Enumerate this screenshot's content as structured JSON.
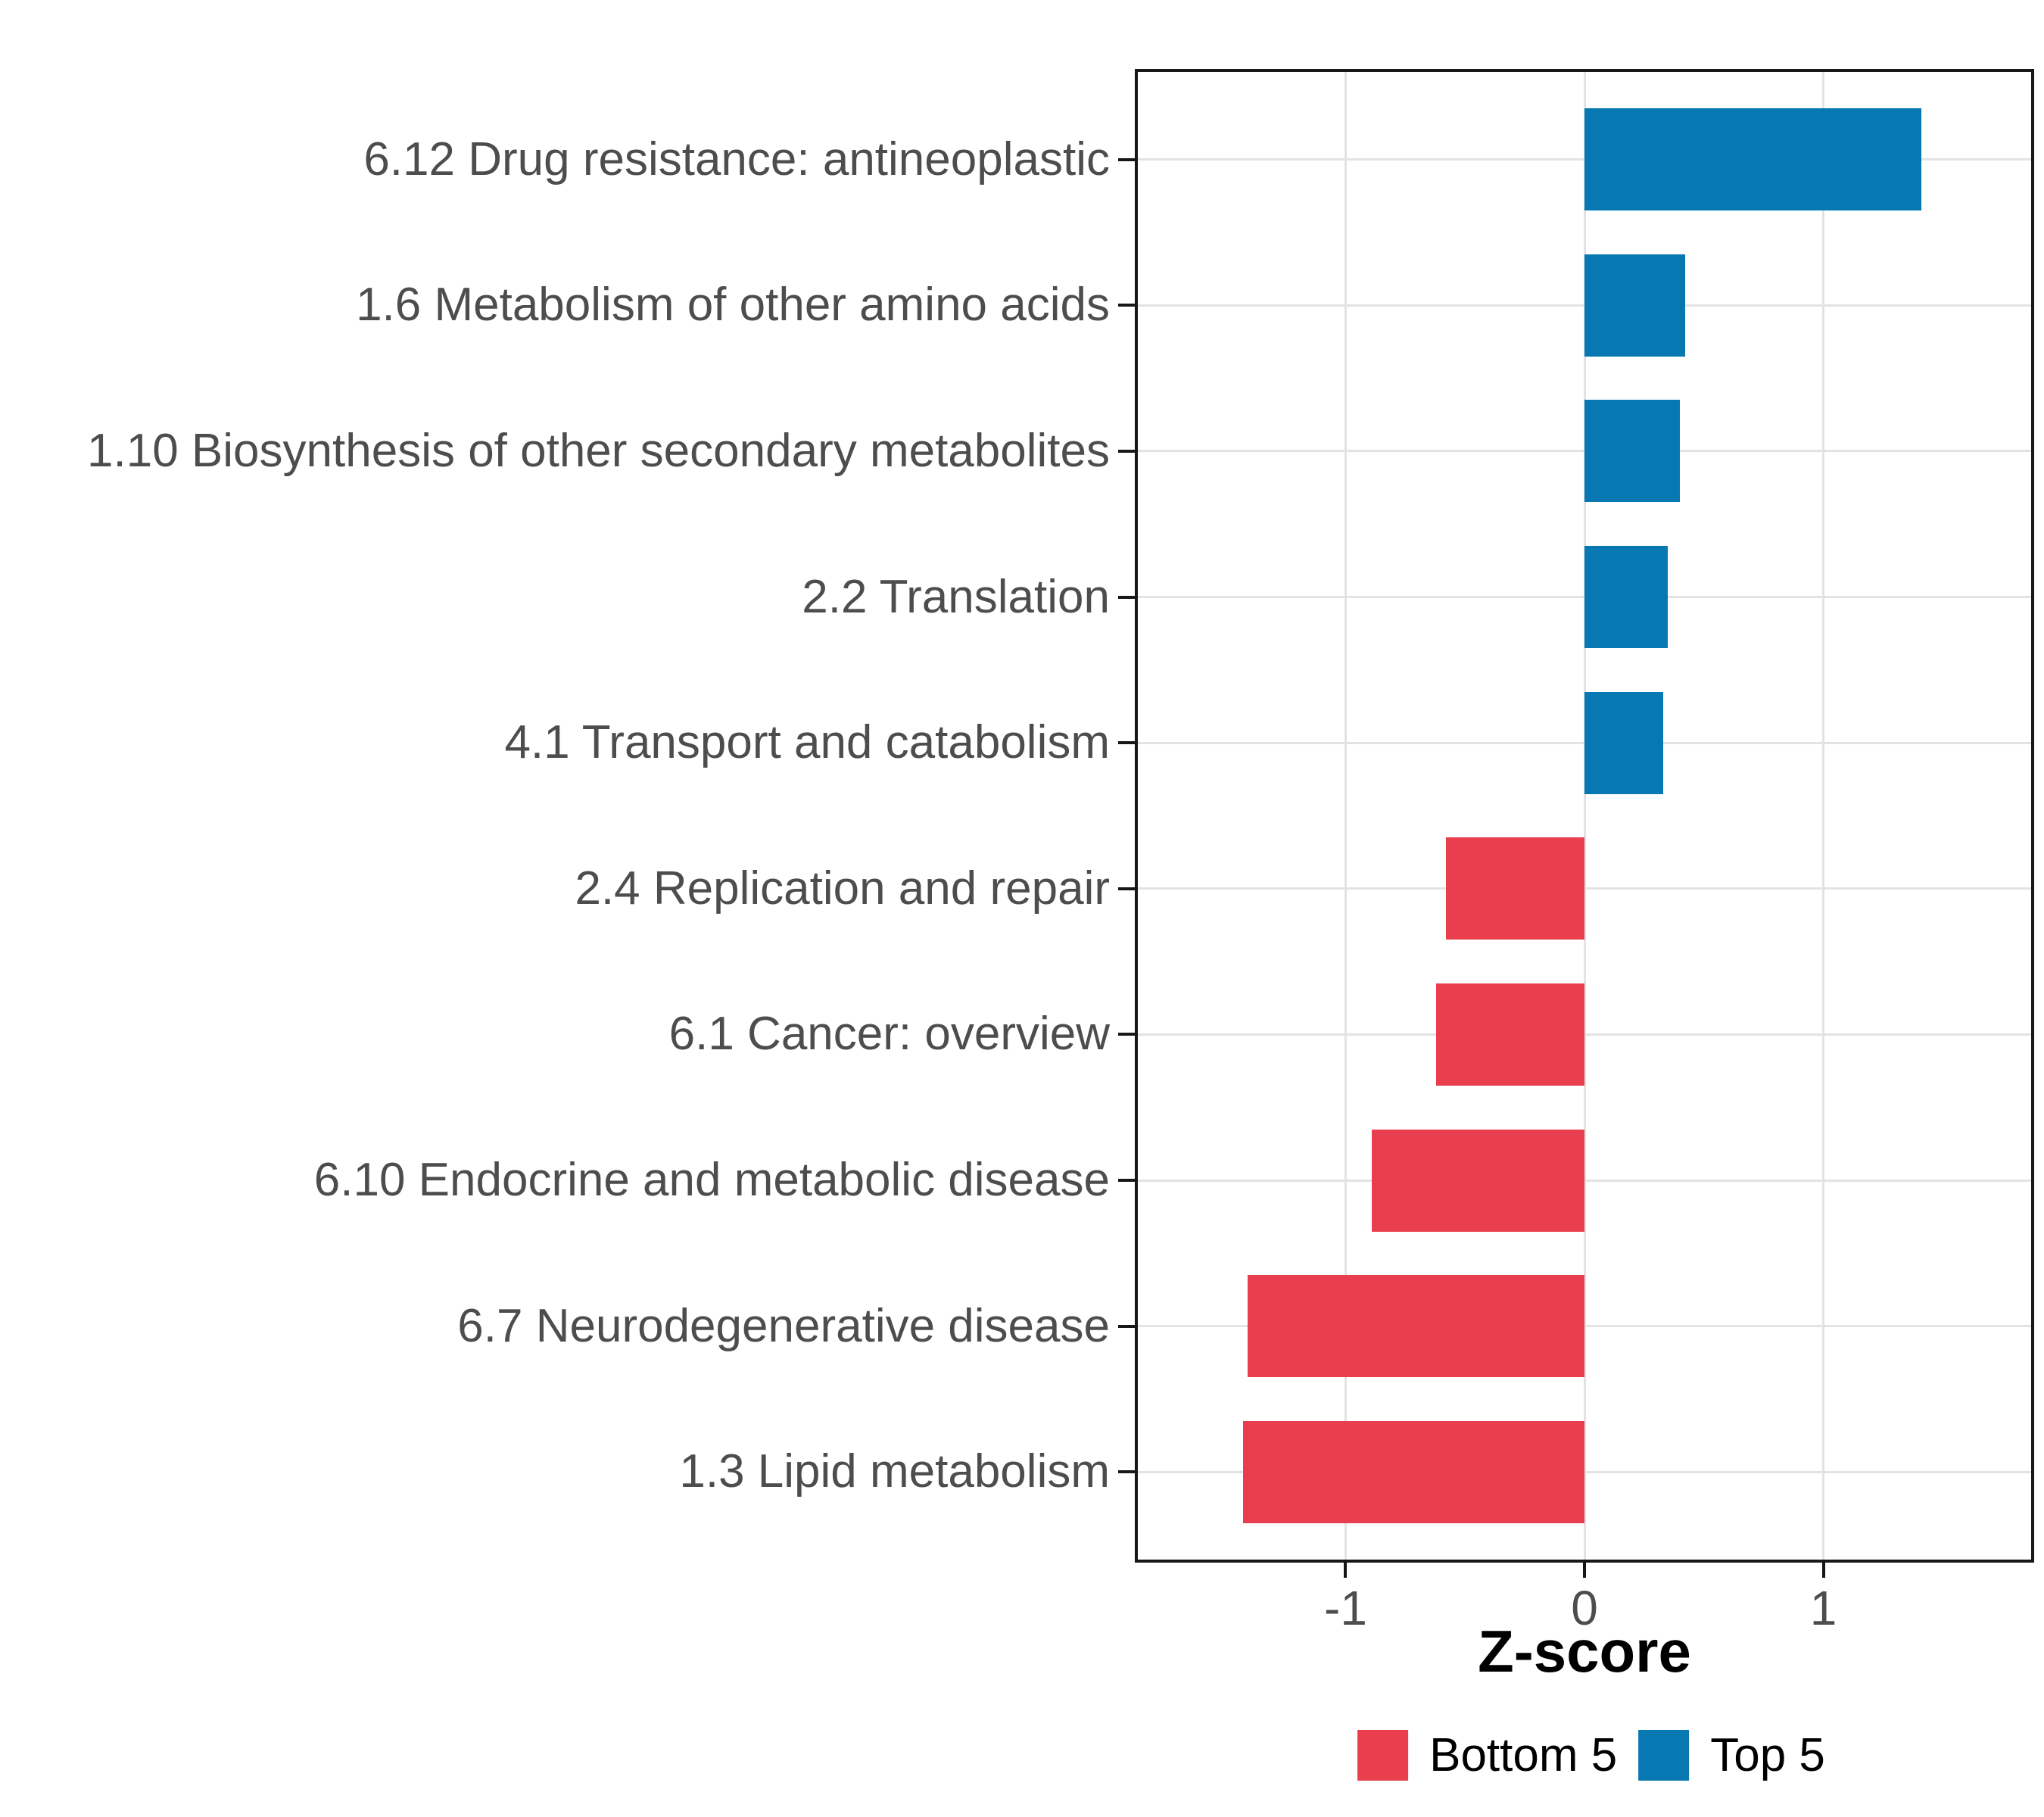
{
  "chart_data": {
    "type": "bar",
    "orientation": "horizontal",
    "title": "",
    "xlabel": "Z-score",
    "ylabel": "",
    "categories": [
      "6.12 Drug resistance: antineoplastic",
      "1.6 Metabolism of other amino acids",
      "1.10 Biosynthesis of other secondary metabolites",
      "2.2 Translation",
      "4.1 Transport and catabolism",
      "2.4 Replication and repair",
      "6.1 Cancer: overview",
      "6.10 Endocrine and metabolic disease",
      "6.7 Neurodegenerative disease",
      "1.3 Lipid metabolism"
    ],
    "values": [
      1.41,
      0.42,
      0.4,
      0.35,
      0.33,
      -0.58,
      -0.62,
      -0.89,
      -1.41,
      -1.43
    ],
    "groups": [
      "Top 5",
      "Top 5",
      "Top 5",
      "Top 5",
      "Top 5",
      "Bottom 5",
      "Bottom 5",
      "Bottom 5",
      "Bottom 5",
      "Bottom 5"
    ],
    "xlim": [
      -1.87,
      1.87
    ],
    "x_ticks": [
      -1,
      0,
      1
    ],
    "x_tick_labels": [
      "-1",
      "0",
      "1"
    ],
    "bar_width_fraction": 0.7,
    "grid": "major-only",
    "legend": {
      "position": "bottom",
      "entries": [
        {
          "label": "Bottom 5",
          "color": "#E83E4D"
        },
        {
          "label": "Top 5",
          "color": "#0878B2"
        }
      ]
    },
    "style_colors": {
      "panel_border": "#171717",
      "gridline": "#E3E3E3",
      "axis_text": "#4D4D4D",
      "axis_title": "#000000",
      "background": "#FFFFFF"
    }
  }
}
